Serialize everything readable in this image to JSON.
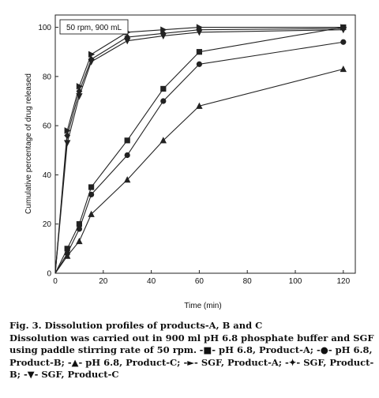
{
  "chart_data": {
    "type": "line",
    "annotation": "50 rpm, 900 mL",
    "xlabel": "Time (min)",
    "ylabel": "Cumulative percentage of drug released",
    "xlim": [
      0,
      125
    ],
    "ylim": [
      0,
      105
    ],
    "xticks": [
      0,
      20,
      40,
      60,
      80,
      100,
      120
    ],
    "yticks": [
      0,
      20,
      40,
      60,
      80,
      100
    ],
    "x": [
      0,
      5,
      10,
      15,
      30,
      45,
      60,
      120
    ],
    "grid": false,
    "legend": "none",
    "series": [
      {
        "name": "pH 6.8, Product-A",
        "marker": "square",
        "values": [
          0,
          10,
          20,
          35,
          54,
          75,
          90,
          100
        ]
      },
      {
        "name": "pH 6.8, Product-B",
        "marker": "circle",
        "values": [
          0,
          8,
          18,
          32,
          48,
          70,
          85,
          94
        ]
      },
      {
        "name": "pH 6.8, Product-C",
        "marker": "triangle-up",
        "values": [
          0,
          7,
          13,
          24,
          38,
          54,
          68,
          83
        ]
      },
      {
        "name": "SGF, Product-A",
        "marker": "triangle-right",
        "values": [
          0,
          58,
          76,
          89,
          98,
          99,
          100,
          100
        ]
      },
      {
        "name": "SGF, Product-B",
        "marker": "diamond",
        "values": [
          0,
          56,
          74,
          87,
          96,
          97.5,
          99,
          99.5
        ]
      },
      {
        "name": "SGF, Product-C",
        "marker": "triangle-down",
        "values": [
          0,
          53,
          72,
          86,
          94.5,
          96.5,
          98,
          99
        ]
      }
    ]
  },
  "caption": {
    "figure": "Fig. 3. Dissolution profiles of products-A, B and C",
    "body": "Dissolution was carried out in 900 ml pH 6.8 phosphate buffer and SGF using paddle stirring rate of 50 rpm.",
    "legend_items": [
      {
        "symbol": "-■-",
        "text": "pH 6.8, Product-A;"
      },
      {
        "symbol": "-●-",
        "text": "pH 6.8, Product-B;"
      },
      {
        "symbol": "-▲-",
        "text": "pH 6.8, Product-C;"
      },
      {
        "symbol": "-►-",
        "text": "SGF, Product-A;"
      },
      {
        "symbol": "-✦-",
        "text": "SGF, Product-B;"
      },
      {
        "symbol": "-▼-",
        "text": "SGF, Product-C"
      }
    ]
  }
}
